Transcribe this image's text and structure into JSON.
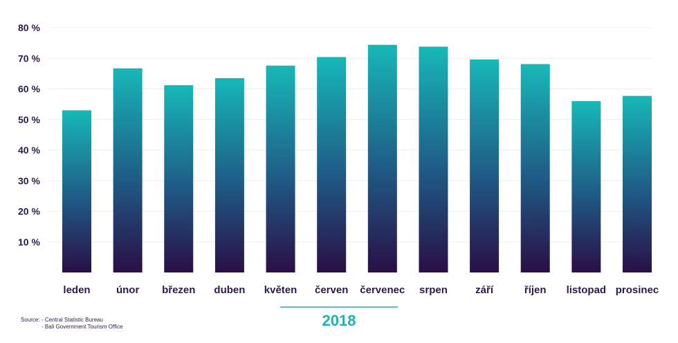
{
  "chart_data": {
    "type": "bar",
    "categories": [
      "leden",
      "únor",
      "březen",
      "duben",
      "květen",
      "červen",
      "červenec",
      "srpen",
      "září",
      "říjen",
      "listopad",
      "prosinec"
    ],
    "values": [
      53,
      66.7,
      61.2,
      63.5,
      67.6,
      70.4,
      74.4,
      73.8,
      69.6,
      68.1,
      56,
      57.7
    ],
    "title": "",
    "xlabel": "2018",
    "ylabel": "",
    "ylim": [
      0,
      80
    ],
    "yticks": [
      10,
      20,
      30,
      40,
      50,
      60,
      70,
      80
    ],
    "ytick_labels": [
      "10 %",
      "20 %",
      "30 %",
      "40 %",
      "50 %",
      "60 %",
      "70 %",
      "80 %"
    ],
    "grid": true,
    "legend": "none",
    "colors": {
      "bar_top": "#17b8b8",
      "bar_bottom": "#2a0f45",
      "text": "#2c1a4a",
      "accent": "#17b3b5",
      "grid": "#ececf2"
    }
  },
  "source": {
    "label": "Source:",
    "items": [
      "- Central Statistic Bureau",
      "- Bali Government Tourism Office"
    ]
  }
}
